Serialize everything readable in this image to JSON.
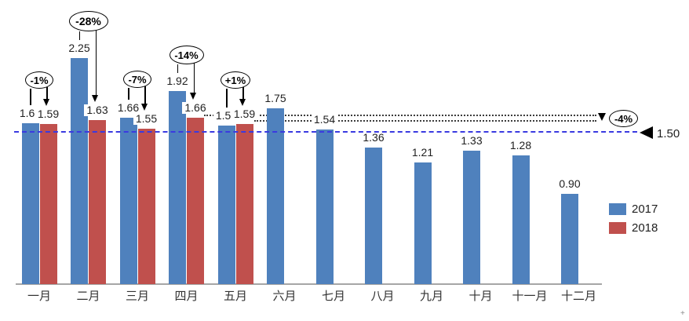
{
  "chart_data": {
    "type": "bar",
    "title": "",
    "categories": [
      "一月",
      "二月",
      "三月",
      "四月",
      "五月",
      "六月",
      "七月",
      "八月",
      "九月",
      "十月",
      "十一月",
      "十二月"
    ],
    "series": [
      {
        "name": "2017",
        "color": "#4F81BD",
        "values": [
          1.6,
          2.25,
          1.66,
          1.92,
          1.58,
          1.75,
          1.54,
          1.36,
          1.21,
          1.33,
          1.28,
          0.9
        ]
      },
      {
        "name": "2018",
        "color": "#C0504D",
        "values": [
          1.59,
          1.63,
          1.55,
          1.66,
          1.59,
          null,
          null,
          null,
          null,
          null,
          null,
          null
        ]
      }
    ],
    "value_label_decimals": 2,
    "annotations": {
      "pct_change_bubbles": [
        {
          "category": "一月",
          "label": "-1%"
        },
        {
          "category": "二月",
          "label": "-28%"
        },
        {
          "category": "三月",
          "label": "-7%"
        },
        {
          "category": "四月",
          "label": "-14%"
        },
        {
          "category": "五月",
          "label": "+1%"
        }
      ],
      "right_bubble": {
        "label": "-4%"
      },
      "reference_line": {
        "value": 1.5,
        "label": "1.50",
        "color": "#3a3ae0",
        "style": "dashed"
      },
      "dotted_guide_levels": [
        1.66,
        1.59
      ]
    },
    "legend": {
      "position": "right",
      "entries": [
        {
          "label": "2017",
          "color": "#4F81BD"
        },
        {
          "label": "2018",
          "color": "#C0504D"
        }
      ]
    },
    "axes": {
      "x_visible": true,
      "y_visible": false,
      "ylim": [
        0,
        2.5
      ],
      "grid": false
    }
  },
  "corner_mark": "+"
}
